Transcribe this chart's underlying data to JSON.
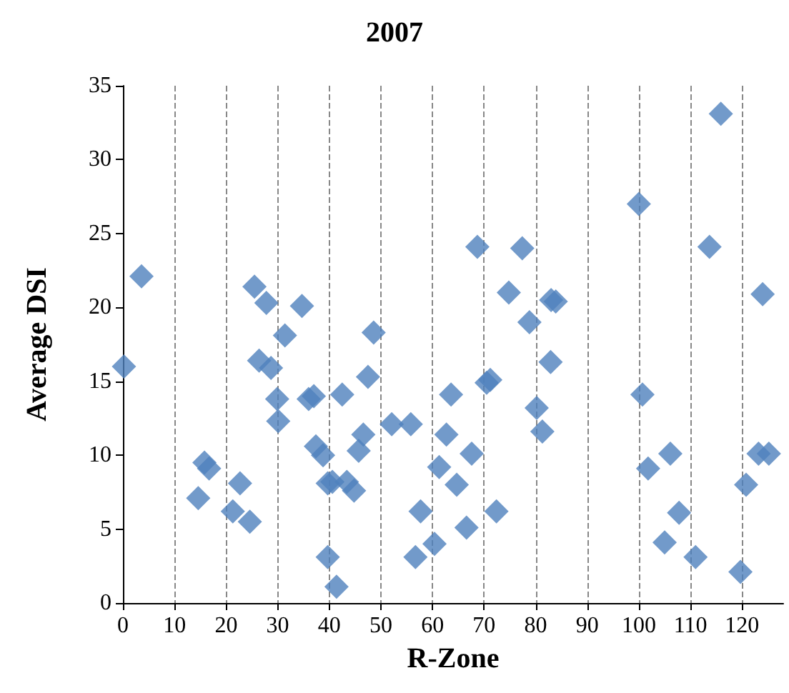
{
  "chart_data": {
    "type": "scatter",
    "title": "2007",
    "xlabel": "R-Zone",
    "ylabel": "Average DSI",
    "xlim": [
      0,
      128
    ],
    "xticks": [
      0,
      10,
      20,
      30,
      40,
      50,
      60,
      70,
      80,
      90,
      100,
      110,
      120
    ],
    "ylim": [
      0,
      35
    ],
    "yticks": [
      0,
      5,
      10,
      15,
      20,
      25,
      30,
      35
    ],
    "grid": "x",
    "marker": "diamond",
    "series": [
      {
        "color": "#4f81bd",
        "x": [
          0.2,
          3.6,
          14.6,
          15.8,
          16.7,
          21.3,
          22.7,
          24.6,
          25.5,
          26.4,
          27.8,
          28.7,
          29.9,
          30.1,
          31.4,
          34.7,
          36,
          37,
          37.4,
          38.8,
          39.7,
          39.7,
          41.4,
          42.5,
          43.4,
          40.6,
          44.8,
          45.7,
          46.6,
          47.5,
          48.6,
          52.1,
          55.8,
          56.7,
          57.7,
          60.4,
          61.3,
          62.7,
          63.6,
          64.7,
          66.6,
          67.6,
          68.7,
          70.5,
          71.2,
          72.4,
          74.8,
          77.4,
          78.8,
          80.2,
          81.3,
          82.9,
          83,
          83.9,
          100,
          100.7,
          101.8,
          105,
          106.1,
          107.8,
          111,
          113.7,
          115.9,
          119.7,
          120.8,
          123.2,
          124,
          125.2
        ],
        "values": [
          16,
          22.1,
          7.1,
          9.5,
          9.1,
          6.2,
          8.1,
          5.5,
          21.4,
          16.4,
          20.3,
          15.9,
          13.8,
          12.3,
          18.1,
          20.1,
          13.8,
          14,
          10.6,
          10,
          8.1,
          3.1,
          1.1,
          14.1,
          8.2,
          8.2,
          7.6,
          10.3,
          11.4,
          15.3,
          18.3,
          12.1,
          12.1,
          3.1,
          6.2,
          4,
          9.2,
          11.4,
          14.1,
          8,
          5.1,
          10.1,
          24.1,
          14.9,
          15.1,
          6.2,
          21,
          24,
          19,
          13.2,
          11.6,
          16.3,
          20.5,
          20.4,
          27,
          14.1,
          9.1,
          4.1,
          10.1,
          6.1,
          3.1,
          24.1,
          33.1,
          2.1,
          8,
          10.1,
          20.9,
          10.1
        ]
      }
    ]
  }
}
